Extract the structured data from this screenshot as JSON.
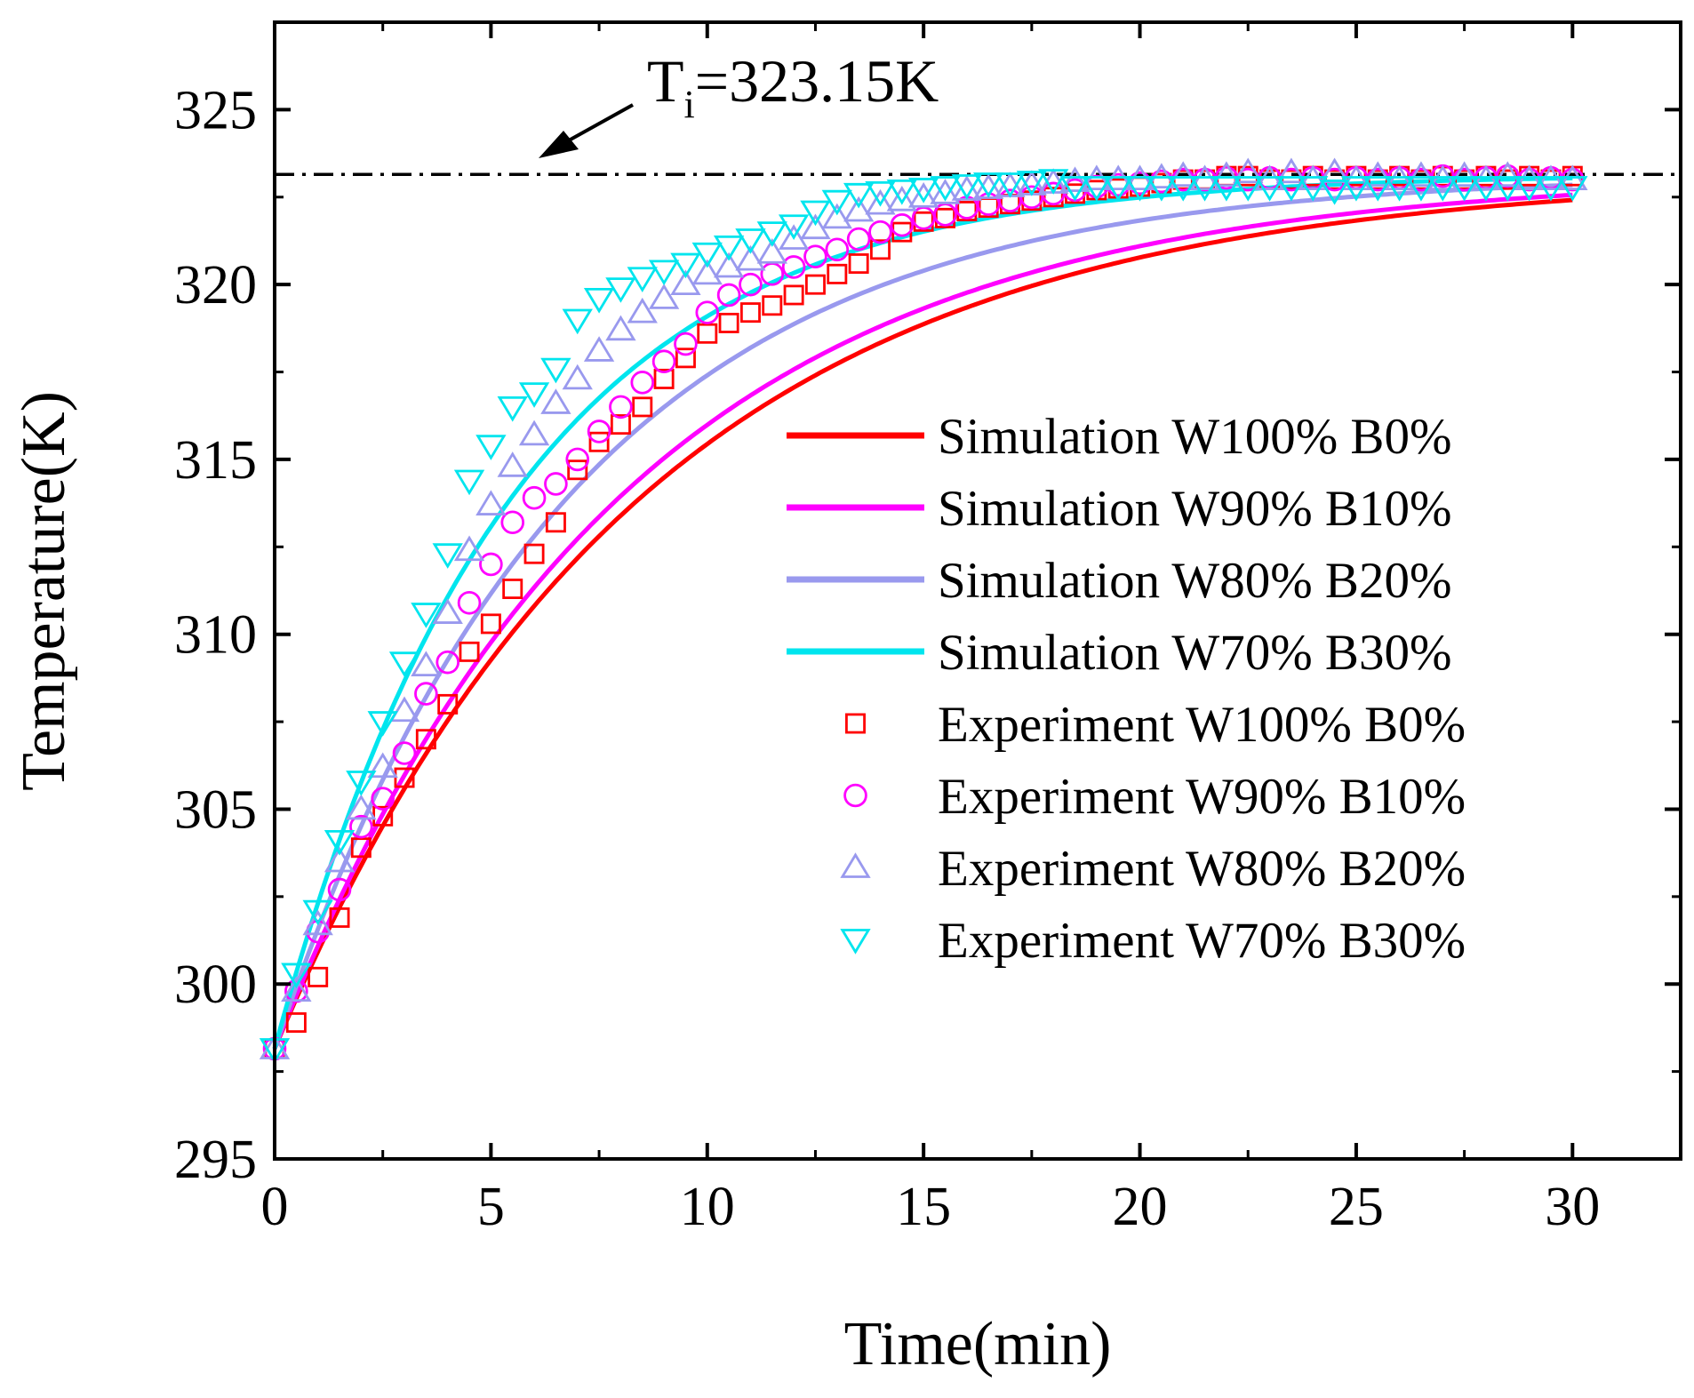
{
  "chart_data": {
    "type": "line",
    "title": "",
    "xlabel": "Time(min)",
    "ylabel": "Temperature(K)",
    "xlim": [
      0,
      32.5
    ],
    "ylim": [
      295,
      327.5
    ],
    "xticks": [
      0,
      5,
      10,
      15,
      20,
      25,
      30
    ],
    "yticks": [
      295,
      300,
      305,
      310,
      315,
      320,
      325
    ],
    "grid": false,
    "legend": {
      "position": "right-center"
    },
    "reference_line": {
      "y": 323.15,
      "style": "dash-dot",
      "color": "#000000"
    },
    "annotation": {
      "prefix": "T",
      "subscript": "i",
      "rest": "=323.15K",
      "points_to": [
        6,
        323.15
      ]
    },
    "series": [
      {
        "name": "Simulation W100% B0%",
        "kind": "line",
        "color": "#ff0000",
        "T0": 298.15,
        "tau": 8.5,
        "x": [
          0,
          1,
          2,
          3,
          4,
          5,
          6,
          7,
          8,
          9,
          10,
          11,
          12,
          13,
          14,
          15,
          16,
          17,
          18,
          19,
          20,
          22,
          24,
          26,
          28,
          30
        ],
        "y": [
          298.15,
          300.96,
          303.47,
          305.7,
          307.69,
          309.47,
          311.05,
          312.46,
          313.71,
          314.83,
          315.82,
          316.71,
          317.5,
          318.2,
          318.83,
          319.38,
          319.88,
          320.32,
          320.72,
          321.07,
          321.38,
          321.91,
          322.33,
          322.56,
          322.78,
          322.92
        ]
      },
      {
        "name": "Simulation W90% B10%",
        "kind": "line",
        "color": "#ff00ff",
        "T0": 298.15,
        "tau": 8.0,
        "x": [
          0,
          1,
          2,
          3,
          4,
          5,
          6,
          7,
          8,
          9,
          10,
          11,
          12,
          13,
          14,
          15,
          16,
          17,
          18,
          19,
          20,
          22,
          24,
          26,
          28,
          30
        ],
        "y": [
          298.15,
          301.09,
          303.68,
          305.97,
          307.99,
          309.78,
          311.35,
          312.74,
          313.97,
          315.05,
          316.0,
          316.85,
          317.59,
          318.25,
          318.83,
          319.34,
          319.79,
          320.19,
          320.54,
          320.85,
          321.13,
          321.67,
          322.06,
          322.34,
          322.55,
          322.68
        ]
      },
      {
        "name": "Simulation W80% B20%",
        "kind": "line",
        "color": "#9999ee",
        "T0": 298.15,
        "tau": 6.8,
        "x": [
          0,
          1,
          2,
          3,
          4,
          5,
          6,
          7,
          8,
          9,
          10,
          11,
          12,
          13,
          14,
          15,
          16,
          17,
          18,
          19,
          20,
          22,
          24,
          26,
          28,
          30
        ],
        "y": [
          298.15,
          301.58,
          304.54,
          307.12,
          309.35,
          311.29,
          312.96,
          314.42,
          315.68,
          316.77,
          317.72,
          318.54,
          319.25,
          319.87,
          320.41,
          320.87,
          321.27,
          321.62,
          321.92,
          322.18,
          322.4,
          322.66,
          322.85,
          322.99,
          323.07,
          323.1
        ]
      },
      {
        "name": "Simulation W70% B30%",
        "kind": "line",
        "color": "#00e5ee",
        "T0": 298.15,
        "tau": 5.5,
        "x": [
          0,
          1,
          2,
          3,
          4,
          5,
          6,
          7,
          8,
          9,
          10,
          11,
          12,
          13,
          14,
          15,
          16,
          17,
          18,
          19,
          20,
          22,
          24,
          26,
          28,
          30
        ],
        "y": [
          298.15,
          302.32,
          305.81,
          308.72,
          311.16,
          313.19,
          314.89,
          316.31,
          317.5,
          318.49,
          319.32,
          320.01,
          320.59,
          321.07,
          321.47,
          321.81,
          322.09,
          322.33,
          322.52,
          322.69,
          322.82,
          323.02,
          323.1,
          323.12,
          323.13,
          323.14
        ]
      },
      {
        "name": "Experiment W100% B0%",
        "kind": "marker",
        "marker": "square",
        "color": "#ff0000",
        "x": [
          0,
          0.5,
          1,
          1.5,
          2,
          2.5,
          3,
          3.5,
          4,
          4.5,
          5,
          5.5,
          6,
          6.5,
          7,
          7.5,
          8,
          8.5,
          9,
          9.5,
          10,
          10.5,
          11,
          11.5,
          12,
          12.5,
          13,
          13.5,
          14,
          14.5,
          15,
          15.5,
          16,
          16.5,
          17,
          17.5,
          18,
          18.5,
          19,
          19.5,
          20,
          20.5,
          21,
          21.5,
          22,
          22.5,
          23,
          23.5,
          24,
          24.5,
          25,
          25.5,
          26,
          26.5,
          27,
          27.5,
          28,
          28.5,
          29,
          29.5,
          30
        ],
        "y": [
          298.15,
          298.9,
          300.2,
          301.9,
          303.9,
          304.8,
          305.9,
          307.0,
          308.0,
          309.5,
          310.3,
          311.3,
          312.3,
          313.2,
          314.7,
          315.5,
          316.0,
          316.5,
          317.3,
          317.9,
          318.6,
          318.9,
          319.2,
          319.4,
          319.7,
          320.0,
          320.3,
          320.6,
          321.0,
          321.5,
          321.8,
          321.9,
          322.1,
          322.2,
          322.3,
          322.4,
          322.5,
          322.6,
          322.7,
          322.75,
          322.8,
          322.9,
          323.0,
          323.0,
          323.1,
          323.1,
          323.0,
          323.0,
          323.1,
          323.0,
          323.1,
          323.0,
          323.1,
          323.0,
          323.1,
          323.0,
          323.1,
          323.0,
          323.1,
          323.0,
          323.1
        ]
      },
      {
        "name": "Experiment W90% B10%",
        "kind": "marker",
        "marker": "circle",
        "color": "#ff00ff",
        "x": [
          0,
          0.5,
          1,
          1.5,
          2,
          2.5,
          3,
          3.5,
          4,
          4.5,
          5,
          5.5,
          6,
          6.5,
          7,
          7.5,
          8,
          8.5,
          9,
          9.5,
          10,
          10.5,
          11,
          11.5,
          12,
          12.5,
          13,
          13.5,
          14,
          14.5,
          15,
          15.5,
          16,
          16.5,
          17,
          17.5,
          18,
          18.5,
          19,
          19.5,
          20,
          20.5,
          21,
          21.5,
          22,
          22.5,
          23,
          23.5,
          24,
          24.5,
          25,
          25.5,
          26,
          26.5,
          27,
          27.5,
          28,
          28.5,
          29,
          29.5,
          30
        ],
        "y": [
          298.15,
          299.8,
          301.5,
          302.7,
          304.5,
          305.3,
          306.6,
          308.3,
          309.2,
          310.9,
          312.0,
          313.2,
          313.9,
          314.3,
          315.0,
          315.8,
          316.5,
          317.2,
          317.8,
          318.3,
          319.2,
          319.7,
          320.0,
          320.3,
          320.5,
          320.8,
          321.0,
          321.3,
          321.5,
          321.7,
          321.9,
          322.0,
          322.2,
          322.3,
          322.4,
          322.5,
          322.6,
          322.7,
          322.8,
          322.85,
          322.9,
          322.95,
          323.0,
          323.0,
          323.05,
          323.0,
          323.05,
          323.0,
          323.05,
          323.0,
          323.05,
          323.0,
          323.05,
          323.0,
          323.1,
          323.0,
          323.05,
          323.1,
          323.0,
          323.05,
          323.0
        ]
      },
      {
        "name": "Experiment W80% B20%",
        "kind": "marker",
        "marker": "triangle-up",
        "color": "#9999ee",
        "x": [
          0,
          0.5,
          1,
          1.5,
          2,
          2.5,
          3,
          3.5,
          4,
          4.5,
          5,
          5.5,
          6,
          6.5,
          7,
          7.5,
          8,
          8.5,
          9,
          9.5,
          10,
          10.5,
          11,
          11.5,
          12,
          12.5,
          13,
          13.5,
          14,
          14.5,
          15,
          15.5,
          16,
          16.5,
          17,
          17.5,
          18,
          18.5,
          19,
          19.5,
          20,
          20.5,
          21,
          21.5,
          22,
          22.5,
          23,
          23.5,
          24,
          24.5,
          25,
          25.5,
          26,
          26.5,
          27,
          27.5,
          28,
          28.5,
          29,
          29.5,
          30
        ],
        "y": [
          298.15,
          299.8,
          301.7,
          303.5,
          305.0,
          306.2,
          307.8,
          309.1,
          310.6,
          312.4,
          313.7,
          314.8,
          315.7,
          316.6,
          317.3,
          318.1,
          318.7,
          319.2,
          319.6,
          320.0,
          320.3,
          320.5,
          320.7,
          320.9,
          321.3,
          321.6,
          321.9,
          322.1,
          322.3,
          322.4,
          322.5,
          322.6,
          322.7,
          322.75,
          322.8,
          322.85,
          322.9,
          322.95,
          323.0,
          323.0,
          323.0,
          323.05,
          323.1,
          323.0,
          323.1,
          323.2,
          323.0,
          323.2,
          323.0,
          323.2,
          323.0,
          323.1,
          323.0,
          323.1,
          323.0,
          323.1,
          323.0,
          323.1,
          323.0,
          323.0,
          323.0
        ]
      },
      {
        "name": "Experiment W70% B30%",
        "kind": "marker",
        "marker": "triangle-down",
        "color": "#00e5ee",
        "x": [
          0,
          0.5,
          1,
          1.5,
          2,
          2.5,
          3,
          3.5,
          4,
          4.5,
          5,
          5.5,
          6,
          6.5,
          7,
          7.5,
          8,
          8.5,
          9,
          9.5,
          10,
          10.5,
          11,
          11.5,
          12,
          12.5,
          13,
          13.5,
          14,
          14.5,
          15,
          15.5,
          16,
          16.5,
          17,
          17.5,
          18,
          18.5,
          19,
          19.5,
          20,
          20.5,
          21,
          21.5,
          22,
          22.5,
          23,
          23.5,
          24,
          24.5,
          25,
          25.5,
          26,
          26.5,
          27,
          27.5,
          28,
          28.5,
          29,
          29.5,
          30
        ],
        "y": [
          298.15,
          300.3,
          302.1,
          304.1,
          305.8,
          307.5,
          309.2,
          310.6,
          312.3,
          314.4,
          315.4,
          316.5,
          316.9,
          317.6,
          319.0,
          319.6,
          319.9,
          320.2,
          320.4,
          320.6,
          320.9,
          321.1,
          321.3,
          321.5,
          321.7,
          322.1,
          322.4,
          322.6,
          322.65,
          322.7,
          322.75,
          322.8,
          322.85,
          322.9,
          322.9,
          322.95,
          323.0,
          322.8,
          322.8,
          322.8,
          322.8,
          322.8,
          322.8,
          322.8,
          322.8,
          322.8,
          322.8,
          322.8,
          322.8,
          322.7,
          322.8,
          322.8,
          322.8,
          322.8,
          322.8,
          322.8,
          322.8,
          322.8,
          322.8,
          322.8,
          322.8
        ]
      }
    ]
  }
}
